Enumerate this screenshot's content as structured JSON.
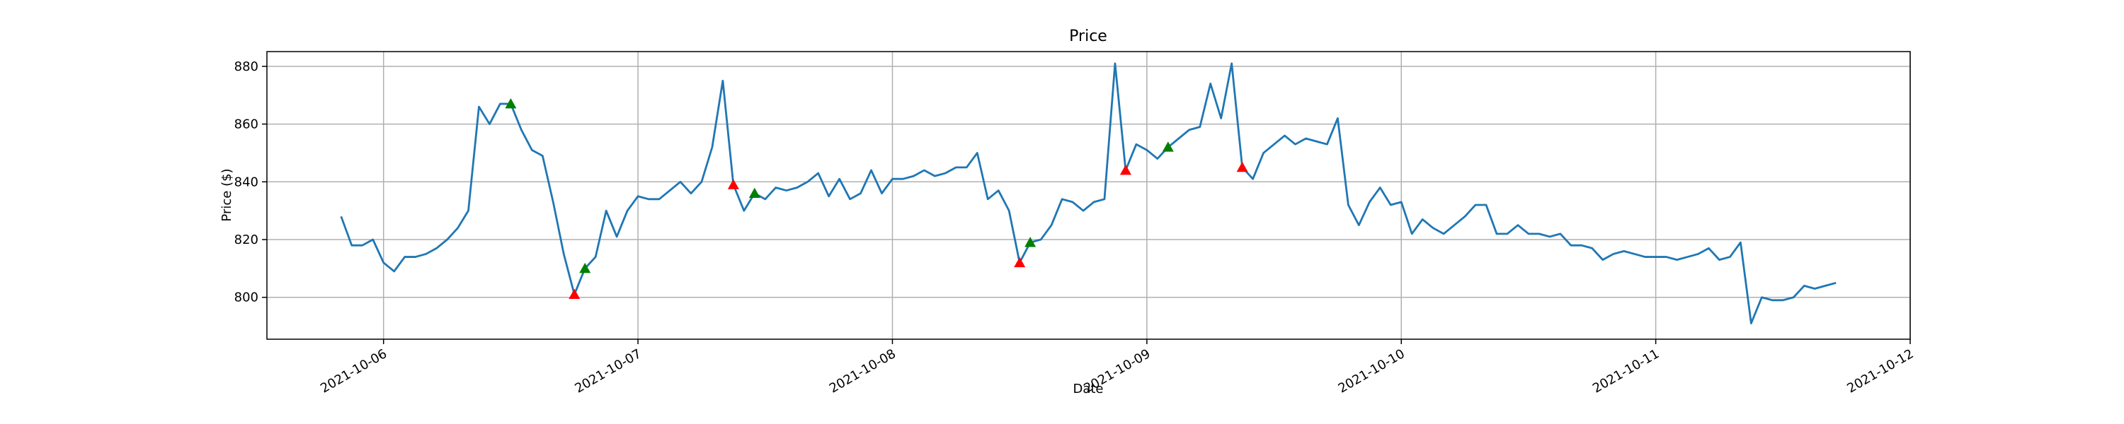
{
  "chart_data": {
    "type": "line",
    "title": "Price",
    "x_label": "Date",
    "y_label": "Price ($)",
    "x": [
      "2021-10-05 20:00",
      "2021-10-05 21:00",
      "2021-10-05 22:00",
      "2021-10-05 23:00",
      "2021-10-06 00:00",
      "2021-10-06 01:00",
      "2021-10-06 02:00",
      "2021-10-06 03:00",
      "2021-10-06 04:00",
      "2021-10-06 05:00",
      "2021-10-06 06:00",
      "2021-10-06 07:00",
      "2021-10-06 08:00",
      "2021-10-06 09:00",
      "2021-10-06 10:00",
      "2021-10-06 11:00",
      "2021-10-06 12:00",
      "2021-10-06 13:00",
      "2021-10-06 14:00",
      "2021-10-06 15:00",
      "2021-10-06 16:00",
      "2021-10-06 17:00",
      "2021-10-06 18:00",
      "2021-10-06 19:00",
      "2021-10-06 20:00",
      "2021-10-06 21:00",
      "2021-10-06 22:00",
      "2021-10-06 23:00",
      "2021-10-07 00:00",
      "2021-10-07 01:00",
      "2021-10-07 02:00",
      "2021-10-07 03:00",
      "2021-10-07 04:00",
      "2021-10-07 05:00",
      "2021-10-07 06:00",
      "2021-10-07 07:00",
      "2021-10-07 08:00",
      "2021-10-07 09:00",
      "2021-10-07 10:00",
      "2021-10-07 11:00",
      "2021-10-07 12:00",
      "2021-10-07 13:00",
      "2021-10-07 14:00",
      "2021-10-07 15:00",
      "2021-10-07 16:00",
      "2021-10-07 17:00",
      "2021-10-07 18:00",
      "2021-10-07 19:00",
      "2021-10-07 20:00",
      "2021-10-07 21:00",
      "2021-10-07 22:00",
      "2021-10-07 23:00",
      "2021-10-08 00:00",
      "2021-10-08 01:00",
      "2021-10-08 02:00",
      "2021-10-08 03:00",
      "2021-10-08 04:00",
      "2021-10-08 05:00",
      "2021-10-08 06:00",
      "2021-10-08 07:00",
      "2021-10-08 08:00",
      "2021-10-08 09:00",
      "2021-10-08 10:00",
      "2021-10-08 11:00",
      "2021-10-08 12:00",
      "2021-10-08 13:00",
      "2021-10-08 14:00",
      "2021-10-08 15:00",
      "2021-10-08 16:00",
      "2021-10-08 17:00",
      "2021-10-08 18:00",
      "2021-10-08 19:00",
      "2021-10-08 20:00",
      "2021-10-08 21:00",
      "2021-10-08 22:00",
      "2021-10-08 23:00",
      "2021-10-09 00:00",
      "2021-10-09 01:00",
      "2021-10-09 02:00",
      "2021-10-09 03:00",
      "2021-10-09 04:00",
      "2021-10-09 05:00",
      "2021-10-09 06:00",
      "2021-10-09 07:00",
      "2021-10-09 08:00",
      "2021-10-09 09:00",
      "2021-10-09 10:00",
      "2021-10-09 11:00",
      "2021-10-09 12:00",
      "2021-10-09 13:00",
      "2021-10-09 14:00",
      "2021-10-09 15:00",
      "2021-10-09 16:00",
      "2021-10-09 17:00",
      "2021-10-09 18:00",
      "2021-10-09 19:00",
      "2021-10-09 20:00",
      "2021-10-09 21:00",
      "2021-10-09 22:00",
      "2021-10-09 23:00",
      "2021-10-10 00:00",
      "2021-10-10 01:00",
      "2021-10-10 02:00",
      "2021-10-10 03:00",
      "2021-10-10 04:00",
      "2021-10-10 05:00",
      "2021-10-10 06:00",
      "2021-10-10 07:00",
      "2021-10-10 08:00",
      "2021-10-10 09:00",
      "2021-10-10 10:00",
      "2021-10-10 11:00",
      "2021-10-10 12:00",
      "2021-10-10 13:00",
      "2021-10-10 14:00",
      "2021-10-10 15:00",
      "2021-10-10 16:00",
      "2021-10-10 17:00",
      "2021-10-10 18:00",
      "2021-10-10 19:00",
      "2021-10-10 20:00",
      "2021-10-10 21:00",
      "2021-10-10 22:00",
      "2021-10-10 23:00",
      "2021-10-11 00:00",
      "2021-10-11 01:00",
      "2021-10-11 02:00",
      "2021-10-11 03:00",
      "2021-10-11 04:00",
      "2021-10-11 05:00",
      "2021-10-11 06:00",
      "2021-10-11 07:00",
      "2021-10-11 08:00",
      "2021-10-11 09:00",
      "2021-10-11 10:00",
      "2021-10-11 11:00",
      "2021-10-11 12:00",
      "2021-10-11 13:00",
      "2021-10-11 14:00",
      "2021-10-11 15:00",
      "2021-10-11 16:00",
      "2021-10-11 17:00"
    ],
    "series": [
      {
        "color": "#1f77b4",
        "values": [
          828,
          818,
          818,
          820,
          812,
          809,
          814,
          814,
          815,
          817,
          820,
          824,
          830,
          866,
          860,
          867,
          867,
          858,
          851,
          849,
          833,
          815,
          801,
          810,
          814,
          830,
          821,
          830,
          835,
          834,
          834,
          837,
          840,
          836,
          840,
          852,
          875,
          839,
          830,
          836,
          834,
          838,
          837,
          838,
          840,
          843,
          835,
          841,
          834,
          836,
          844,
          836,
          841,
          841,
          842,
          844,
          842,
          843,
          845,
          845,
          850,
          834,
          837,
          830,
          812,
          819,
          820,
          825,
          834,
          833,
          830,
          833,
          834,
          881,
          844,
          853,
          851,
          848,
          852,
          855,
          858,
          859,
          874,
          862,
          881,
          845,
          841,
          850,
          853,
          856,
          853,
          855,
          854,
          853,
          862,
          832,
          825,
          833,
          838,
          832,
          833,
          822,
          827,
          824,
          822,
          825,
          828,
          832,
          832,
          822,
          822,
          825,
          822,
          822,
          821,
          822,
          818,
          818,
          817,
          813,
          815,
          816,
          815,
          814,
          814,
          814,
          813,
          814,
          815,
          817,
          813,
          814,
          819,
          791,
          800,
          799,
          799,
          800,
          804,
          803,
          804,
          805
        ]
      },
      {
        "color": "green",
        "marker": "^",
        "x": [
          "2021-10-06 12:00",
          "2021-10-06 19:00",
          "2021-10-07 11:00",
          "2021-10-08 13:00",
          "2021-10-09 02:00"
        ],
        "values": [
          867,
          810,
          836,
          819,
          852
        ]
      },
      {
        "color": "red",
        "marker": "^",
        "x": [
          "2021-10-06 18:00",
          "2021-10-07 09:00",
          "2021-10-08 12:00",
          "2021-10-08 22:00",
          "2021-10-09 09:00"
        ],
        "values": [
          801,
          839,
          812,
          844,
          845
        ]
      }
    ],
    "xlim": [
      "2021-10-05 13:00",
      "2021-10-12 00:00"
    ],
    "xticks": [
      "2021-10-06",
      "2021-10-07",
      "2021-10-08",
      "2021-10-09",
      "2021-10-10",
      "2021-10-11",
      "2021-10-12"
    ],
    "ylim": [
      785.5,
      885.1
    ],
    "yticks": [
      800,
      820,
      840,
      860,
      880
    ],
    "grid": true
  }
}
